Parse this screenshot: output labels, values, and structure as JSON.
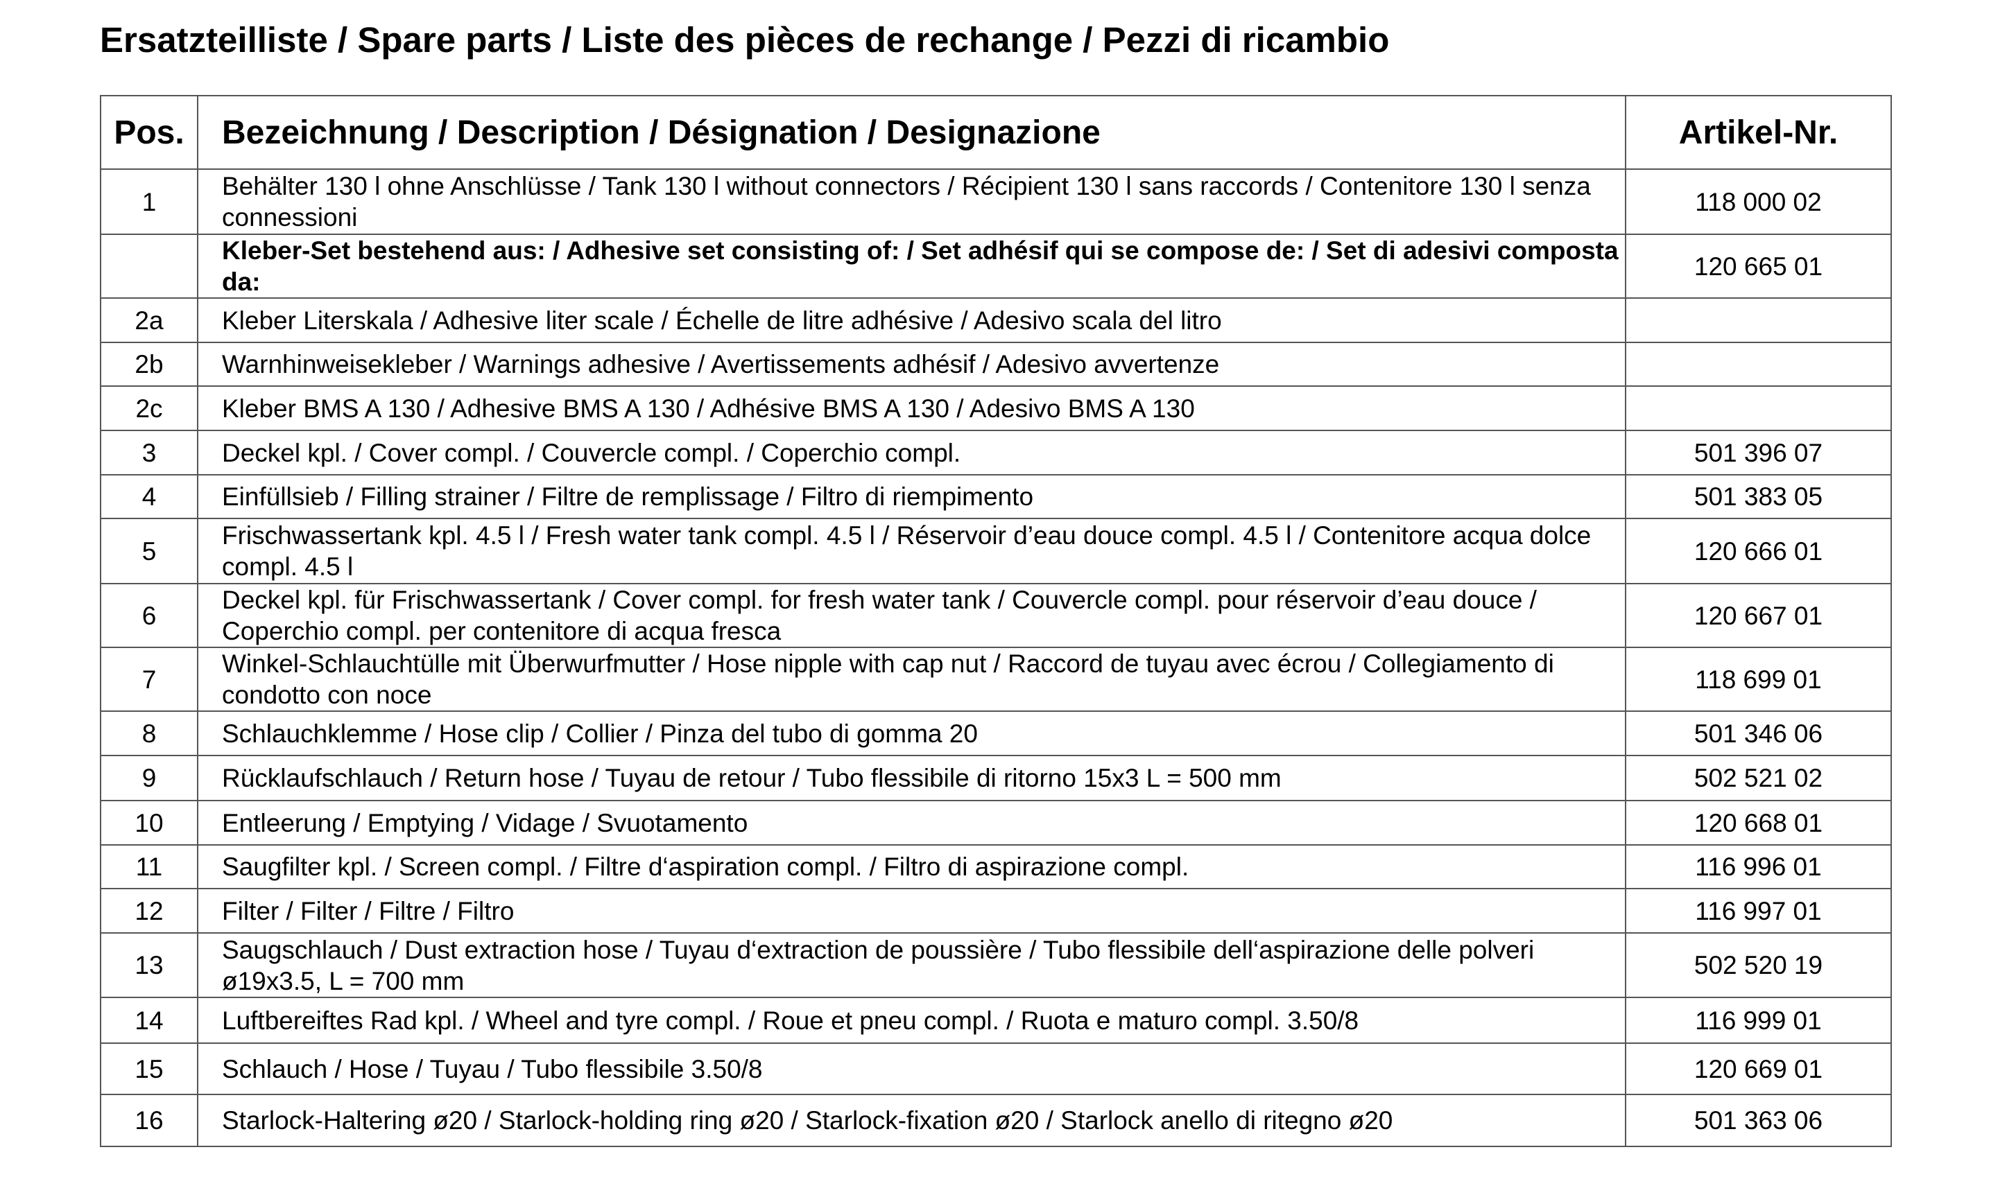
{
  "title": "Ersatzteilliste / Spare parts / Liste des pièces de rechange / Pezzi di ricambio",
  "table": {
    "headers": {
      "pos": "Pos.",
      "description": "Bezeichnung / Description / Désignation / Designazione",
      "article": "Artikel-Nr."
    },
    "rows": [
      {
        "pos": "1",
        "description": "Behälter 130 l ohne Anschlüsse / Tank 130 l without connectors / Récipient 130 l sans raccords / Contenitore 130 l senza connessioni",
        "article": "118 000 02"
      },
      {
        "pos": "",
        "description": "Kleber-Set bestehend aus: / Adhesive set consisting of: / Set adhésif qui se compose de: / Set di adesivi composta da:",
        "article": "120 665 01",
        "bold": true
      },
      {
        "pos": "2a",
        "description": "Kleber Literskala / Adhesive liter scale / Échelle de litre adhésive / Adesivo scala del litro",
        "article": ""
      },
      {
        "pos": "2b",
        "description": "Warnhinweisekleber / Warnings adhesive / Avertissements adhésif / Adesivo avvertenze",
        "article": ""
      },
      {
        "pos": "2c",
        "description": "Kleber BMS A 130 / Adhesive BMS A 130 / Adhésive BMS A 130 / Adesivo BMS A 130",
        "article": ""
      },
      {
        "pos": "3",
        "description": "Deckel kpl. / Cover compl. / Couvercle compl. / Coperchio compl.",
        "article": "501 396 07"
      },
      {
        "pos": "4",
        "description": "Einfüllsieb / Filling strainer / Filtre de remplissage / Filtro di riempimento",
        "article": "501 383 05"
      },
      {
        "pos": "5",
        "description": "Frischwassertank kpl. 4.5 l / Fresh water tank compl. 4.5 l / Réservoir d’eau douce compl. 4.5 l / Contenitore acqua dolce compl. 4.5 l",
        "article": "120 666 01"
      },
      {
        "pos": "6",
        "description": "Deckel kpl. für Frischwassertank / Cover compl. for fresh water tank / Couvercle compl. pour réservoir d’eau douce / Coperchio compl. per contenitore di acqua fresca",
        "article": "120 667 01"
      },
      {
        "pos": "7",
        "description": "Winkel-Schlauchtülle mit Überwurfmutter / Hose nipple with cap nut / Raccord de tuyau avec écrou / Collegiamento di condotto con noce",
        "article": "118 699 01"
      },
      {
        "pos": "8",
        "description": "Schlauchklemme / Hose clip / Collier / Pinza del tubo di gomma  20",
        "article": "501 346 06"
      },
      {
        "pos": "9",
        "description": "Rücklaufschlauch / Return hose / Tuyau de retour / Tubo flessibile di ritorno 15x3  L = 500 mm",
        "article": "502 521 02"
      },
      {
        "pos": "10",
        "description": "Entleerung / Emptying / Vidage / Svuotamento",
        "article": "120 668 01"
      },
      {
        "pos": "11",
        "description": "Saugfilter kpl. / Screen compl. / Filtre d‘aspiration compl. / Filtro di aspirazione compl.",
        "article": "116 996 01"
      },
      {
        "pos": "12",
        "description": "Filter / Filter / Filtre / Filtro",
        "article": "116 997 01"
      },
      {
        "pos": "13",
        "description": "Saugschlauch / Dust extraction hose / Tuyau d‘extraction de poussière / Tubo flessibile dell‘aspirazione delle polveri  ø19x3.5,  L = 700 mm",
        "article": "502 520 19"
      },
      {
        "pos": "14",
        "description": "Luftbereiftes Rad kpl. / Wheel and tyre compl. / Roue et pneu compl. / Ruota e maturo compl. 3.50/8",
        "article": "116 999 01"
      },
      {
        "pos": "15",
        "description": "Schlauch / Hose / Tuyau / Tubo flessibile  3.50/8",
        "article": "120 669 01"
      },
      {
        "pos": "16",
        "description": "Starlock-Haltering ø20 / Starlock-holding ring ø20 / Starlock-fixation ø20 / Starlock anello di ritegno ø20",
        "article": "501 363 06"
      }
    ]
  }
}
